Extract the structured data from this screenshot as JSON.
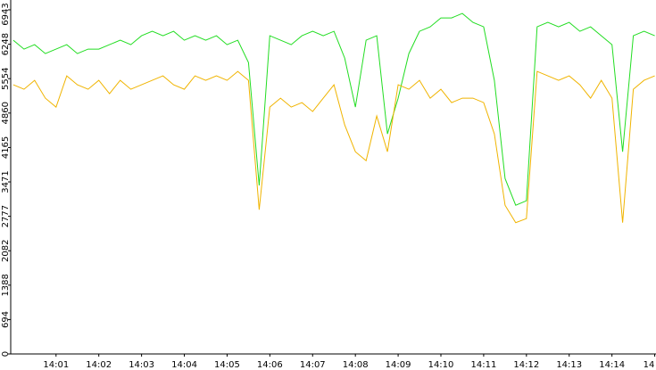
{
  "chart_data": {
    "type": "line",
    "x": [
      0,
      0.25,
      0.5,
      0.75,
      1,
      1.25,
      1.5,
      1.75,
      2,
      2.25,
      2.5,
      2.75,
      3,
      3.25,
      3.5,
      3.75,
      4,
      4.25,
      4.5,
      4.75,
      5,
      5.25,
      5.5,
      5.75,
      6,
      6.25,
      6.5,
      6.75,
      7,
      7.25,
      7.5,
      7.75,
      8,
      8.25,
      8.5,
      8.75,
      9,
      9.25,
      9.5,
      9.75,
      10,
      10.25,
      10.5,
      10.75,
      11,
      11.25,
      11.5,
      11.75,
      12,
      12.25,
      12.5,
      12.75,
      13,
      13.25,
      13.5,
      13.75,
      14,
      14.25,
      14.5,
      14.75,
      15
    ],
    "series": [
      {
        "color": "#22dd22",
        "values": [
          6330,
          6150,
          6240,
          6060,
          6150,
          6240,
          6060,
          6150,
          6150,
          6240,
          6330,
          6240,
          6420,
          6510,
          6420,
          6510,
          6330,
          6420,
          6330,
          6420,
          6240,
          6330,
          5880,
          3400,
          6420,
          6330,
          6240,
          6420,
          6510,
          6420,
          6510,
          5970,
          4980,
          6330,
          6420,
          4440,
          5160,
          6060,
          6510,
          6600,
          6780,
          6780,
          6870,
          6690,
          6600,
          5520,
          3540,
          3000,
          3090,
          6600,
          6690,
          6600,
          6690,
          6510,
          6600,
          6420,
          6240,
          4080,
          6420,
          6510,
          6420
        ]
      },
      {
        "color": "#f0b400",
        "values": [
          5430,
          5340,
          5520,
          5160,
          4980,
          5610,
          5430,
          5340,
          5520,
          5250,
          5520,
          5340,
          5430,
          5520,
          5610,
          5430,
          5340,
          5610,
          5520,
          5610,
          5520,
          5700,
          5520,
          2910,
          4980,
          5160,
          4980,
          5070,
          4890,
          5160,
          5430,
          4620,
          4080,
          3900,
          4800,
          4080,
          5430,
          5340,
          5520,
          5160,
          5340,
          5070,
          5160,
          5160,
          5070,
          4440,
          3000,
          2650,
          2730,
          5700,
          5610,
          5520,
          5610,
          5430,
          5160,
          5520,
          5160,
          2650,
          5340,
          5520,
          5610
        ]
      }
    ],
    "xlim": [
      -0.06,
      15.03
    ],
    "xticks": [
      {
        "value": 1,
        "label": "14:01"
      },
      {
        "value": 2,
        "label": "14:02"
      },
      {
        "value": 3,
        "label": "14:03"
      },
      {
        "value": 4,
        "label": "14:04"
      },
      {
        "value": 5,
        "label": "14:05"
      },
      {
        "value": 6,
        "label": "14:06"
      },
      {
        "value": 7,
        "label": "14:07"
      },
      {
        "value": 8,
        "label": "14:08"
      },
      {
        "value": 9,
        "label": "14:09"
      },
      {
        "value": 10,
        "label": "14:10"
      },
      {
        "value": 11,
        "label": "14:11"
      },
      {
        "value": 12,
        "label": "14:12"
      },
      {
        "value": 13,
        "label": "14:13"
      },
      {
        "value": 14,
        "label": "14:14"
      },
      {
        "value": 15,
        "label": "14"
      }
    ],
    "ylim": [
      0,
      6943
    ],
    "yticks": [
      0,
      694,
      1388,
      2082,
      2777,
      3471,
      4165,
      4860,
      5554,
      6248,
      6943
    ]
  }
}
